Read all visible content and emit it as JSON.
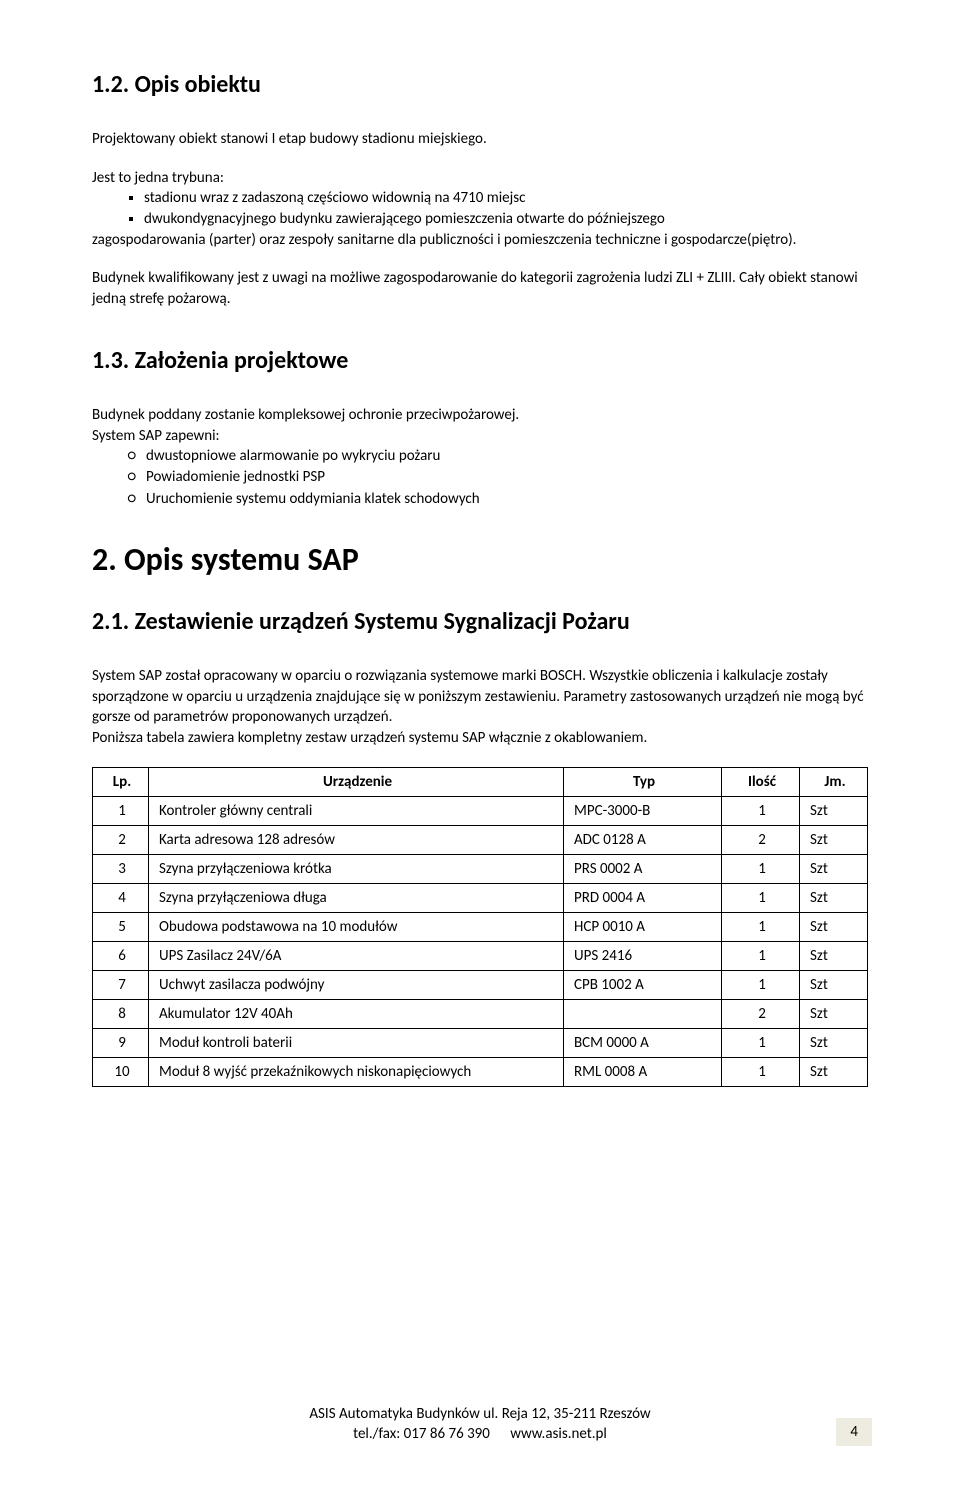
{
  "s12": {
    "heading": "1.2. Opis obiektu",
    "p1": "Projektowany obiekt stanowi I etap budowy stadionu miejskiego.",
    "p2_lead": "Jest to jedna trybuna:",
    "bullets": [
      "stadionu wraz z zadaszoną częściowo widownią na 4710 miejsc",
      "dwukondygnacyjnego budynku zawierającego pomieszczenia otwarte do późniejszego"
    ],
    "p3": "zagospodarowania (parter) oraz zespoły sanitarne dla publiczności i pomieszczenia techniczne i gospodarcze(piętro).",
    "p4": "Budynek kwalifikowany jest z uwagi na możliwe zagospodarowanie do kategorii zagrożenia ludzi ZLI + ZLIII. Cały obiekt stanowi jedną strefę pożarową."
  },
  "s13": {
    "heading": "1.3. Założenia projektowe",
    "p1": "Budynek poddany zostanie kompleksowej ochronie przeciwpożarowej.",
    "p2": "System SAP zapewni:",
    "bullets": [
      "dwustopniowe alarmowanie po wykryciu pożaru",
      "Powiadomienie jednostki PSP",
      "Uruchomienie systemu oddymiania klatek schodowych"
    ]
  },
  "s2": {
    "heading": "2. Opis systemu SAP"
  },
  "s21": {
    "heading": "2.1. Zestawienie urządzeń Systemu Sygnalizacji Pożaru",
    "p1": "System SAP został opracowany w oparciu o rozwiązania systemowe marki BOSCH. Wszystkie obliczenia i kalkulacje zostały sporządzone w oparciu u urządzenia znajdujące się w poniższym zestawieniu. Parametry zastosowanych urządzeń nie mogą być gorsze od parametrów proponowanych urządzeń.",
    "p2": "Poniższa tabela zawiera kompletny zestaw urządzeń systemu SAP włącznie z okablowaniem."
  },
  "table": {
    "headers": {
      "lp": "Lp.",
      "urz": "Urządzenie",
      "typ": "Typ",
      "il": "Ilość",
      "jm": "Jm."
    },
    "rows": [
      {
        "lp": "1",
        "urz": "Kontroler główny centrali",
        "typ": "MPC-3000-B",
        "il": "1",
        "jm": "Szt"
      },
      {
        "lp": "2",
        "urz": "Karta adresowa 128 adresów",
        "typ": "ADC 0128 A",
        "il": "2",
        "jm": "Szt"
      },
      {
        "lp": "3",
        "urz": "Szyna przyłączeniowa krótka",
        "typ": "PRS 0002 A",
        "il": "1",
        "jm": "Szt"
      },
      {
        "lp": "4",
        "urz": "Szyna przyłączeniowa długa",
        "typ": "PRD 0004 A",
        "il": "1",
        "jm": "Szt"
      },
      {
        "lp": "5",
        "urz": "Obudowa podstawowa na 10 modułów",
        "typ": "HCP 0010 A",
        "il": "1",
        "jm": "Szt"
      },
      {
        "lp": "6",
        "urz": "UPS Zasilacz 24V/6A",
        "typ": "UPS 2416",
        "il": "1",
        "jm": "Szt"
      },
      {
        "lp": "7",
        "urz": "Uchwyt zasilacza podwójny",
        "typ": "CPB 1002 A",
        "il": "1",
        "jm": "Szt"
      },
      {
        "lp": "8",
        "urz": "Akumulator 12V 40Ah",
        "typ": "",
        "il": "2",
        "jm": "Szt"
      },
      {
        "lp": "9",
        "urz": "Moduł kontroli baterii",
        "typ": "BCM 0000 A",
        "il": "1",
        "jm": "Szt"
      },
      {
        "lp": "10",
        "urz": "Moduł 8 wyjść przekaźnikowych niskonapięciowych",
        "typ": "RML 0008 A",
        "il": "1",
        "jm": "Szt"
      }
    ]
  },
  "footer": {
    "line1": "ASIS Automatyka Budynków ul. Reja 12, 35-211 Rzeszów",
    "line2": "tel./fax: 017 86 76 390      www.asis.net.pl",
    "page": "4"
  }
}
